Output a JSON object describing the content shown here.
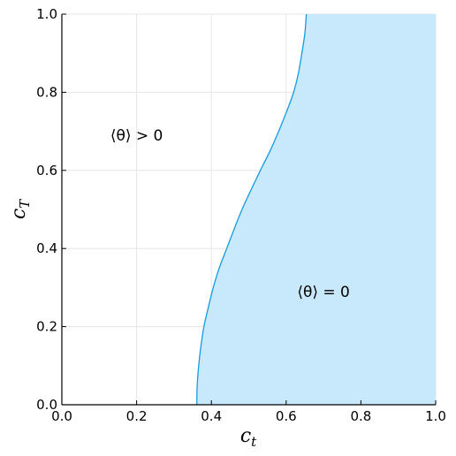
{
  "chart_data": {
    "type": "area",
    "title": "",
    "xlabel": {
      "main": "c",
      "sub": "t"
    },
    "ylabel": {
      "main": "c",
      "sub": "T"
    },
    "xlim": [
      0,
      1
    ],
    "ylim": [
      0,
      1
    ],
    "grid": true,
    "x_ticks": [
      "0.0",
      "0.2",
      "0.4",
      "0.6",
      "0.8",
      "1.0"
    ],
    "y_ticks": [
      "0.0",
      "0.2",
      "0.4",
      "0.6",
      "0.8",
      "1.0"
    ],
    "boundary": {
      "x": [
        0.361,
        0.362,
        0.366,
        0.372,
        0.38,
        0.392,
        0.405,
        0.421,
        0.441,
        0.461,
        0.482,
        0.506,
        0.531,
        0.557,
        0.58,
        0.601,
        0.62,
        0.633,
        0.642,
        0.65,
        0.654
      ],
      "y": [
        0.0,
        0.05,
        0.1,
        0.15,
        0.2,
        0.25,
        0.3,
        0.35,
        0.4,
        0.45,
        0.5,
        0.55,
        0.6,
        0.65,
        0.7,
        0.75,
        0.8,
        0.85,
        0.9,
        0.95,
        1.0
      ]
    },
    "fill_color": "#c8e8fb",
    "line_color": "#159be0",
    "annotations": [
      {
        "text": "⟨θ⟩ > 0",
        "x": 0.2,
        "y": 0.69
      },
      {
        "text": "⟨θ⟩ = 0",
        "x": 0.7,
        "y": 0.29
      }
    ]
  }
}
